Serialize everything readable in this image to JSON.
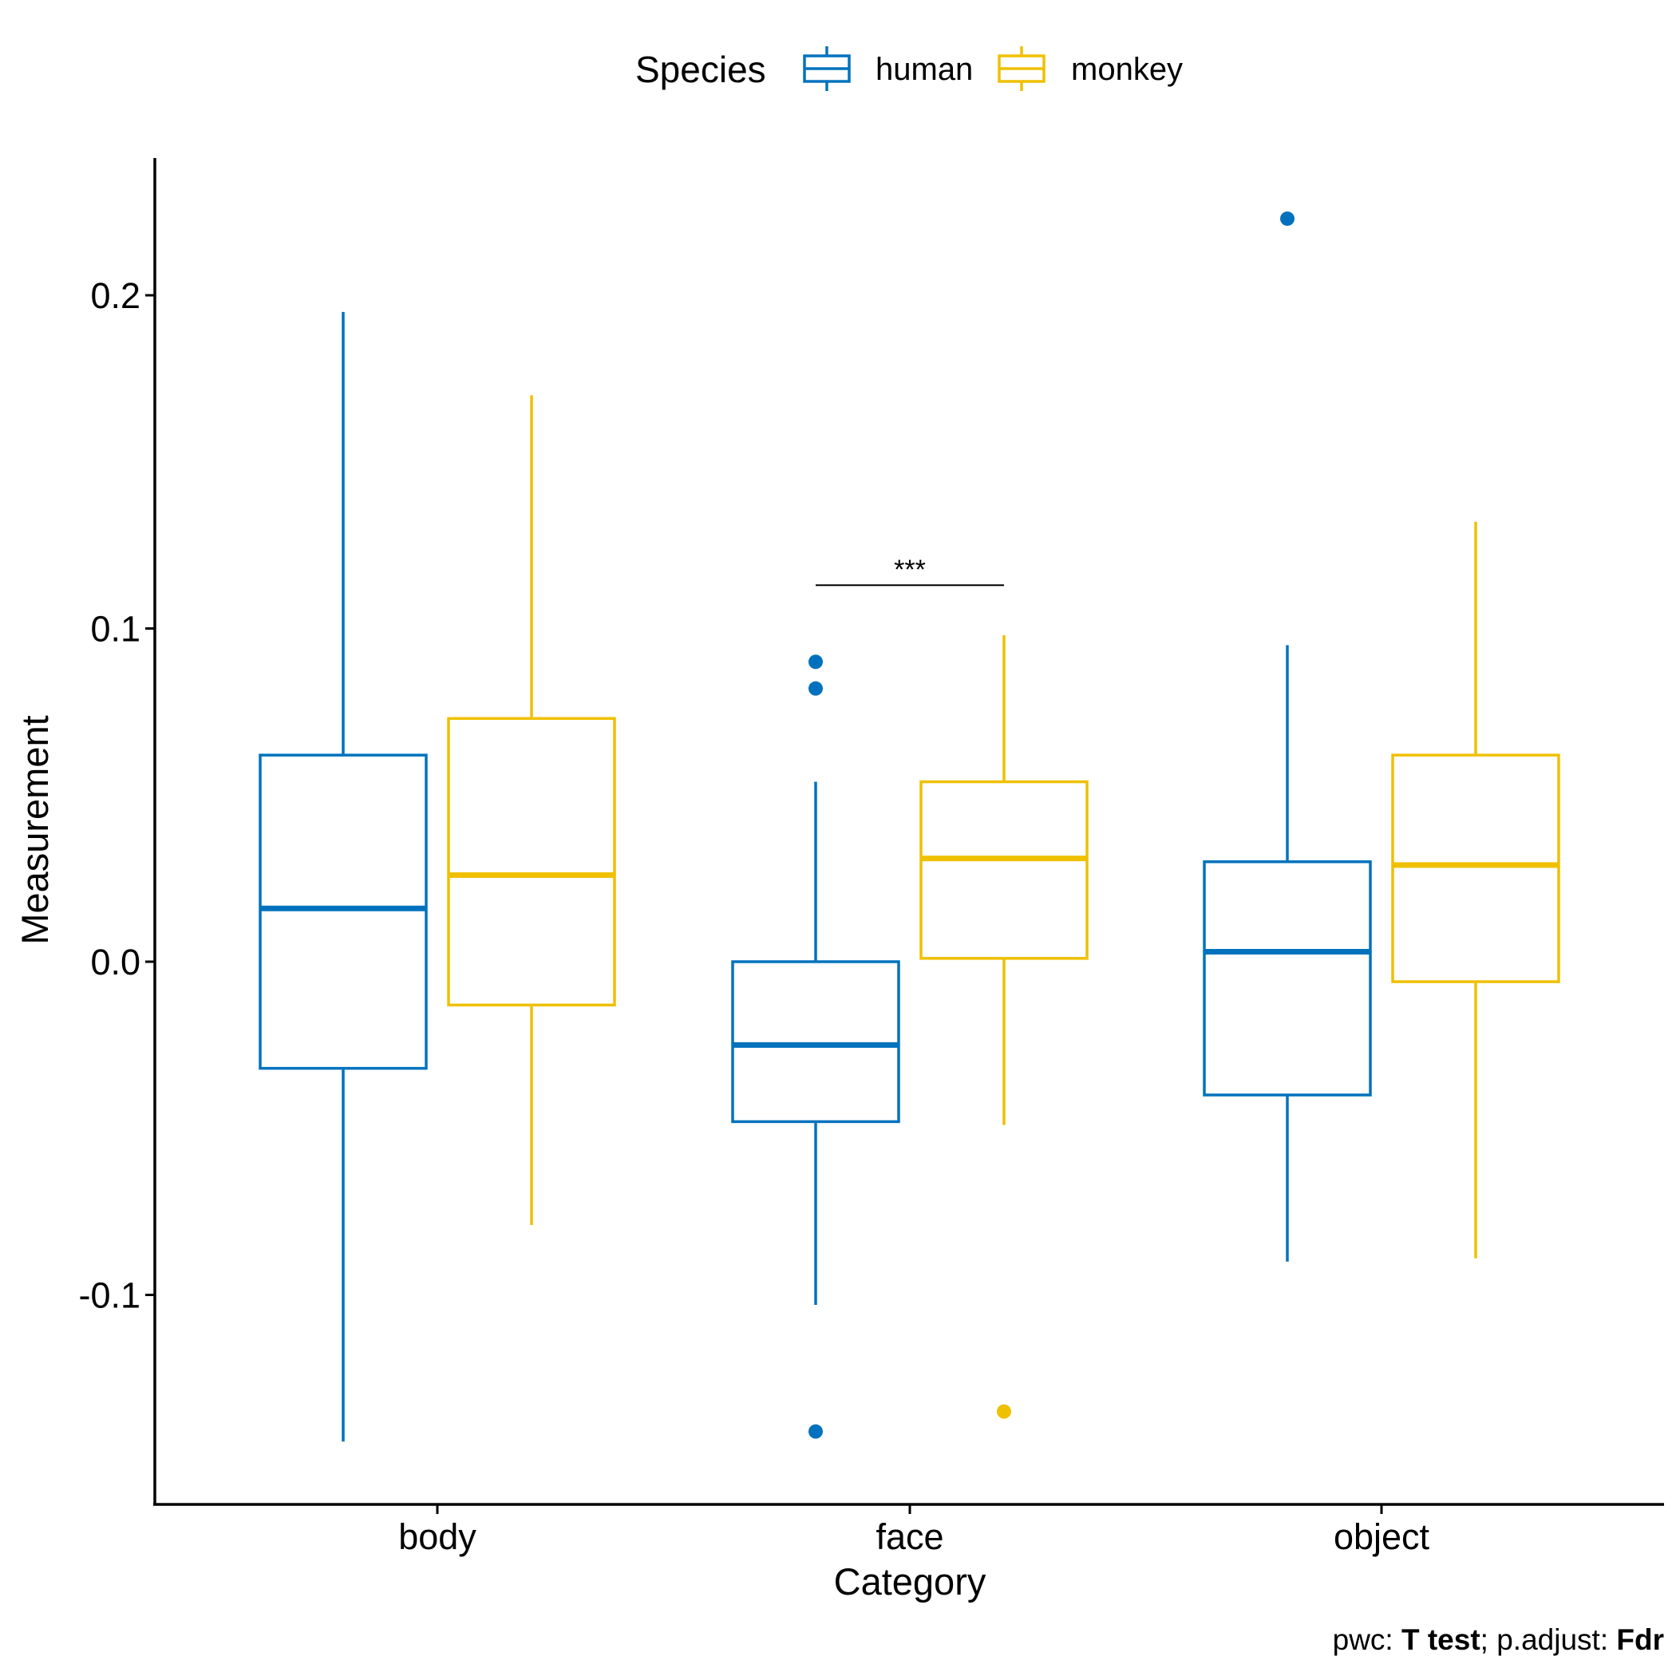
{
  "chart_data": {
    "type": "boxplot",
    "xlabel": "Category",
    "ylabel": "Measurement",
    "categories": [
      "body",
      "face",
      "object"
    ],
    "ylim": [
      -0.164,
      0.24
    ],
    "yticks": [
      -0.1,
      0.0,
      0.1,
      0.2
    ],
    "ytick_labels": [
      "-0.1",
      "0.0",
      "0.1",
      "0.2"
    ],
    "legend": {
      "title": "Species",
      "position": "top"
    },
    "series": [
      {
        "name": "human",
        "color": "#0072BD",
        "boxes": [
          {
            "category": "body",
            "whisker_low": -0.144,
            "q1": -0.032,
            "median": 0.016,
            "q3": 0.062,
            "whisker_high": 0.195,
            "outliers": []
          },
          {
            "category": "face",
            "whisker_low": -0.103,
            "q1": -0.048,
            "median": -0.025,
            "q3": 0.0,
            "whisker_high": 0.054,
            "outliers": [
              0.09,
              0.082,
              -0.141
            ]
          },
          {
            "category": "object",
            "whisker_low": -0.09,
            "q1": -0.04,
            "median": 0.003,
            "q3": 0.03,
            "whisker_high": 0.095,
            "outliers": [
              0.223
            ]
          }
        ]
      },
      {
        "name": "monkey",
        "color": "#EFC000",
        "boxes": [
          {
            "category": "body",
            "whisker_low": -0.079,
            "q1": -0.013,
            "median": 0.026,
            "q3": 0.073,
            "whisker_high": 0.17,
            "outliers": []
          },
          {
            "category": "face",
            "whisker_low": -0.049,
            "q1": 0.001,
            "median": 0.031,
            "q3": 0.054,
            "whisker_high": 0.098,
            "outliers": [
              -0.135
            ]
          },
          {
            "category": "object",
            "whisker_low": -0.089,
            "q1": -0.006,
            "median": 0.029,
            "q3": 0.062,
            "whisker_high": 0.132,
            "outliers": []
          }
        ]
      }
    ],
    "annotations": [
      {
        "category": "face",
        "label": "***",
        "y": 0.113
      }
    ],
    "caption": {
      "prefix": "pwc: ",
      "test": "T test",
      "separator": "; p.adjust: ",
      "adjust": "Fdr"
    }
  }
}
